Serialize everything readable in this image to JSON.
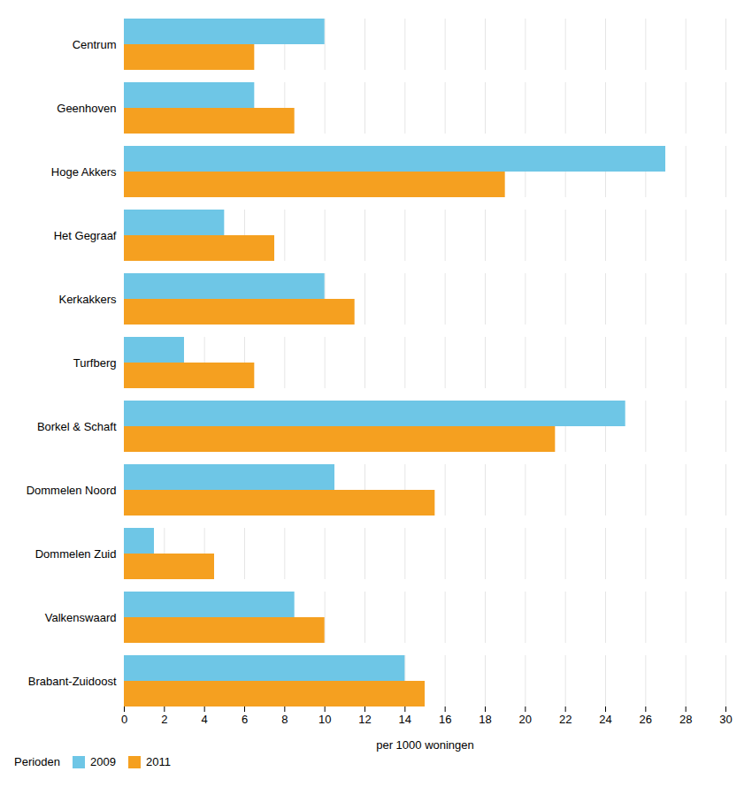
{
  "chart_data": {
    "type": "bar",
    "orientation": "horizontal",
    "categories": [
      "Centrum",
      "Geenhoven",
      "Hoge Akkers",
      "Het Gegraaf",
      "Kerkakkers",
      "Turfberg",
      "Borkel & Schaft",
      "Dommelen Noord",
      "Dommelen Zuid",
      "Valkenswaard",
      "Brabant-Zuidoost"
    ],
    "series": [
      {
        "name": "2009",
        "color": "#6EC6E6",
        "values": [
          10.0,
          6.5,
          27.0,
          5.0,
          10.0,
          3.0,
          25.0,
          10.5,
          1.5,
          8.5,
          14.0
        ]
      },
      {
        "name": "2011",
        "color": "#F5A020",
        "values": [
          6.5,
          8.5,
          19.0,
          7.5,
          11.5,
          6.5,
          21.5,
          15.5,
          4.5,
          10.0,
          15.0
        ]
      }
    ],
    "xlabel": "per 1000 woningen",
    "xlim": [
      0,
      30
    ],
    "xticks": [
      0,
      2,
      4,
      6,
      8,
      10,
      12,
      14,
      16,
      18,
      20,
      22,
      24,
      26,
      28,
      30
    ],
    "grid": true,
    "legend": "bottom left",
    "annotations": [
      "Perioden"
    ]
  }
}
